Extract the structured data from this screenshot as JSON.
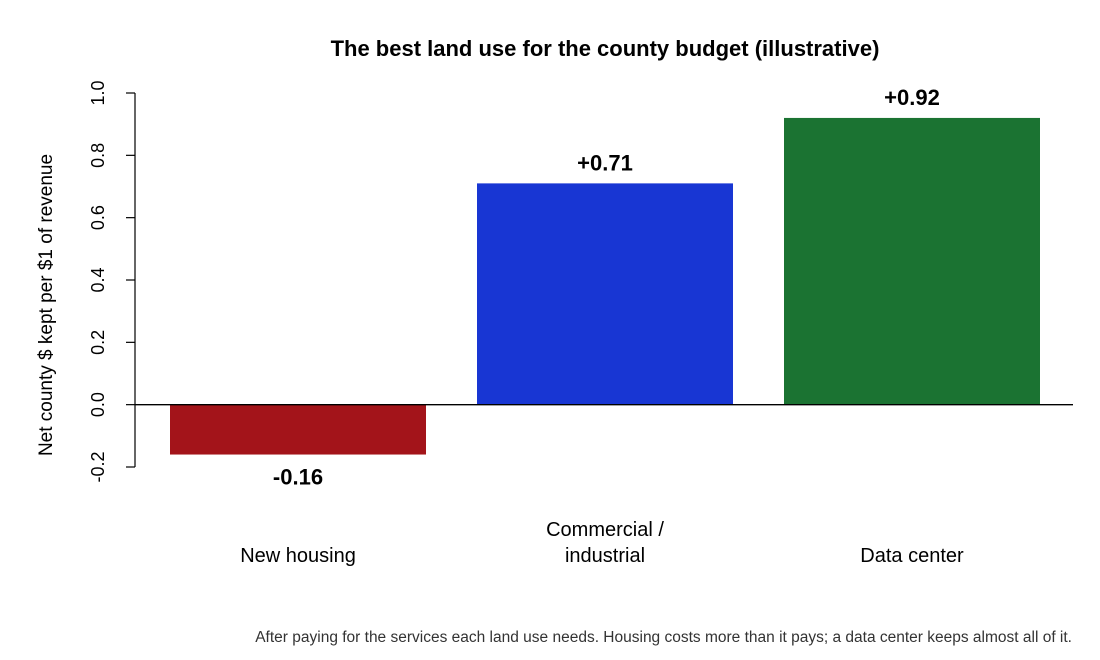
{
  "chart_data": {
    "type": "bar",
    "title": "The best land use for the county budget (illustrative)",
    "xlabel": "",
    "ylabel": "Net county $ kept per $1 of revenue",
    "ylim": [
      -0.2,
      1.0
    ],
    "yticks": [
      -0.2,
      0.0,
      0.2,
      0.4,
      0.6,
      0.8,
      1.0
    ],
    "ytick_labels": [
      "-0.2",
      "0.0",
      "0.2",
      "0.4",
      "0.6",
      "0.8",
      "1.0"
    ],
    "zero_line": true,
    "grid": false,
    "categories": [
      {
        "label_lines": [
          "New housing"
        ]
      },
      {
        "label_lines": [
          "Commercial /",
          "industrial"
        ]
      },
      {
        "label_lines": [
          "Data center"
        ]
      }
    ],
    "values": [
      -0.16,
      0.71,
      0.92
    ],
    "value_labels": [
      "-0.16",
      "+0.71",
      "+0.92"
    ],
    "colors": [
      "#a3141a",
      "#1836d3",
      "#1b7332"
    ]
  },
  "footnote": "After paying for the services each land use needs. Housing costs more than it pays; a data center keeps almost all of it."
}
